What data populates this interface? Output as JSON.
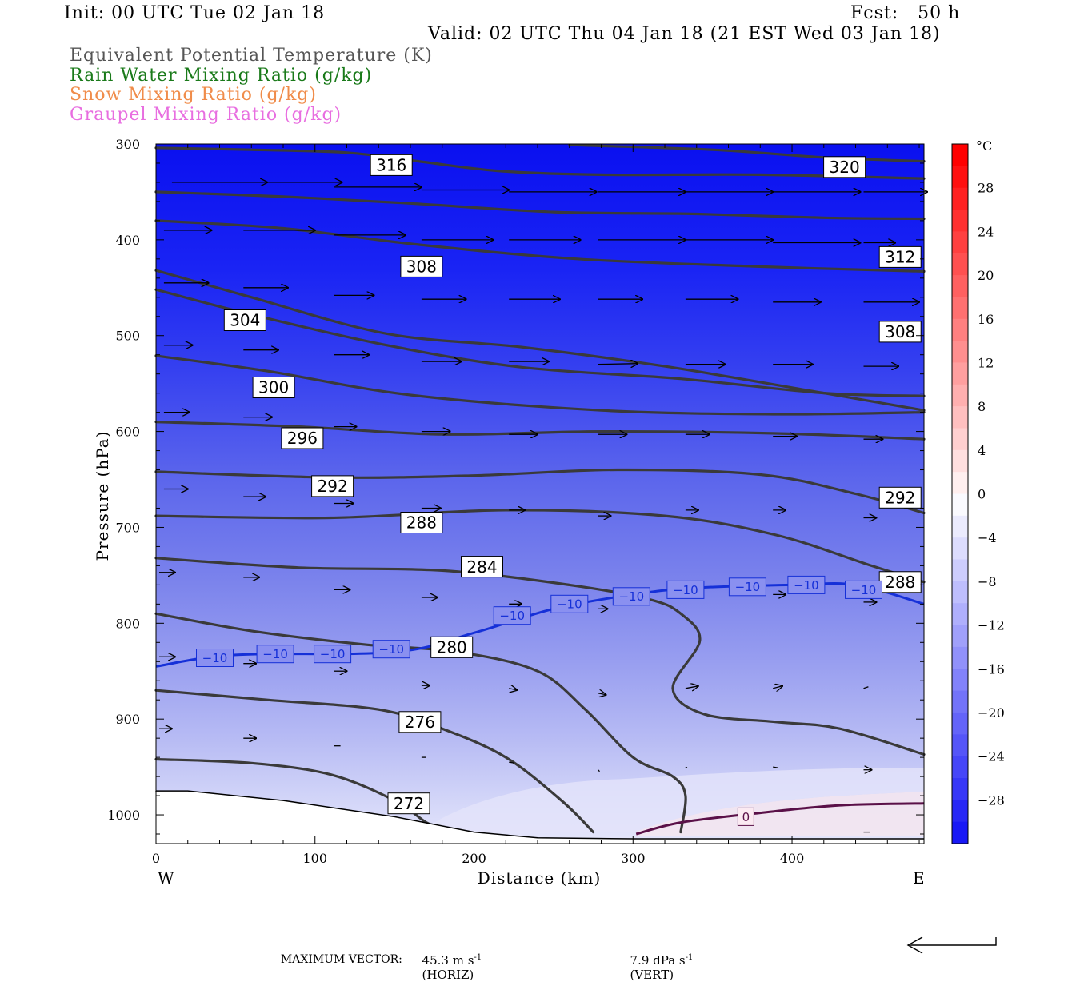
{
  "header": {
    "init": "Init: 00 UTC Tue 02 Jan 18",
    "fcst": "Fcst:   50 h",
    "valid": "Valid: 02 UTC Thu 04 Jan 18 (21 EST Wed 03 Jan 18)"
  },
  "fields": [
    {
      "label": "Equivalent Potential Temperature (K)",
      "color": "#555555"
    },
    {
      "label": "Rain Water Mixing Ratio (g/kg)",
      "color": "#1a7a1a"
    },
    {
      "label": "Snow Mixing Ratio (g/kg)",
      "color": "#f08c4a"
    },
    {
      "label": "Graupel Mixing Ratio (g/kg)",
      "color": "#e86ee0"
    }
  ],
  "footer": {
    "max_vector": "MAXIMUM VECTOR:",
    "horiz_val": "45.3 m s",
    "horiz_unit": "(HORIZ)",
    "vert_val": "7.9 dPa s",
    "vert_unit": "(VERT)",
    "exp": "-1"
  },
  "chart_data": {
    "type": "cross-section",
    "xlabel": "Distance (km)",
    "ylabel": "Pressure (hPa)",
    "x_ticks": [
      0,
      100,
      200,
      300,
      400
    ],
    "y_ticks": [
      300,
      400,
      500,
      600,
      700,
      800,
      900,
      1000
    ],
    "xlim": [
      0,
      483
    ],
    "ylim": [
      300,
      1030
    ],
    "direction_left": "W",
    "direction_right": "E",
    "colorbar": {
      "unit": "°C",
      "ticks": [
        28,
        24,
        20,
        16,
        12,
        8,
        4,
        0,
        -4,
        -8,
        -12,
        -16,
        -20,
        -24,
        -28
      ]
    },
    "theta_e_contours": [
      {
        "value": "316",
        "points": [
          [
            0,
            304
          ],
          [
            60,
            306
          ],
          [
            120,
            309
          ],
          [
            165,
            318
          ],
          [
            215,
            328
          ],
          [
            280,
            332
          ],
          [
            380,
            332
          ],
          [
            483,
            336
          ]
        ],
        "label_at": [
          148,
          322
        ]
      },
      {
        "value": "320",
        "points": [
          [
            260,
            301
          ],
          [
            350,
            306
          ],
          [
            420,
            314
          ],
          [
            483,
            318
          ]
        ],
        "label_at": [
          433,
          324
        ]
      },
      {
        "value": "312",
        "points": [
          [
            0,
            350
          ],
          [
            80,
            355
          ],
          [
            160,
            362
          ],
          [
            250,
            371
          ],
          [
            340,
            373
          ],
          [
            420,
            377
          ],
          [
            483,
            378
          ]
        ],
        "label_at": [
          468,
          418
        ]
      },
      {
        "value": "308",
        "points": [
          [
            0,
            380
          ],
          [
            80,
            388
          ],
          [
            165,
            405
          ],
          [
            265,
            420
          ],
          [
            380,
            428
          ],
          [
            483,
            433
          ]
        ],
        "label_at": [
          167,
          428
        ]
      },
      {
        "value": "308",
        "points": [
          [
            0,
            432
          ],
          [
            60,
            460
          ],
          [
            145,
            498
          ],
          [
            230,
            512
          ],
          [
            320,
            532
          ],
          [
            420,
            560
          ],
          [
            483,
            578
          ]
        ],
        "label_at": [
          468,
          496
        ]
      },
      {
        "value": "304",
        "points": [
          [
            0,
            452
          ],
          [
            60,
            478
          ],
          [
            145,
            510
          ],
          [
            230,
            533
          ],
          [
            330,
            545
          ],
          [
            420,
            560
          ],
          [
            483,
            563
          ]
        ],
        "label_at": [
          56,
          484
        ]
      },
      {
        "value": "300",
        "points": [
          [
            0,
            521
          ],
          [
            70,
            537
          ],
          [
            160,
            562
          ],
          [
            280,
            578
          ],
          [
            390,
            582
          ],
          [
            483,
            580
          ]
        ],
        "label_at": [
          74,
          554
        ]
      },
      {
        "value": "296",
        "points": [
          [
            0,
            590
          ],
          [
            90,
            595
          ],
          [
            180,
            603
          ],
          [
            280,
            600
          ],
          [
            390,
            602
          ],
          [
            483,
            608
          ]
        ],
        "label_at": [
          92,
          607
        ]
      },
      {
        "value": "292",
        "points": [
          [
            0,
            642
          ],
          [
            110,
            648
          ],
          [
            200,
            646
          ],
          [
            290,
            640
          ],
          [
            380,
            645
          ],
          [
            440,
            665
          ],
          [
            483,
            685
          ]
        ],
        "label_at": [
          111,
          657
        ]
      },
      {
        "value": "292",
        "points": [
          [
            440,
            665
          ],
          [
            483,
            685
          ]
        ],
        "label_at": [
          468,
          669
        ]
      },
      {
        "value": "288",
        "points": [
          [
            0,
            688
          ],
          [
            110,
            690
          ],
          [
            220,
            682
          ],
          [
            320,
            688
          ],
          [
            390,
            708
          ],
          [
            450,
            740
          ],
          [
            483,
            757
          ]
        ],
        "label_at": [
          167,
          695
        ]
      },
      {
        "value": "288",
        "points": [
          [
            450,
            740
          ],
          [
            483,
            757
          ]
        ],
        "label_at": [
          468,
          757
        ]
      },
      {
        "value": "284",
        "points": [
          [
            0,
            732
          ],
          [
            90,
            742
          ],
          [
            180,
            745
          ],
          [
            260,
            760
          ],
          [
            310,
            775
          ],
          [
            330,
            790
          ],
          [
            342,
            818
          ],
          [
            325,
            868
          ],
          [
            345,
            895
          ],
          [
            390,
            903
          ],
          [
            430,
            910
          ],
          [
            483,
            937
          ]
        ],
        "label_at": [
          205,
          741
        ]
      },
      {
        "value": "280",
        "points": [
          [
            0,
            790
          ],
          [
            60,
            808
          ],
          [
            130,
            822
          ],
          [
            190,
            830
          ],
          [
            240,
            850
          ],
          [
            270,
            890
          ],
          [
            300,
            940
          ],
          [
            325,
            960
          ],
          [
            333,
            980
          ],
          [
            330,
            1018
          ]
        ],
        "label_at": [
          186,
          825
        ]
      },
      {
        "value": "276",
        "points": [
          [
            0,
            870
          ],
          [
            70,
            880
          ],
          [
            140,
            890
          ],
          [
            180,
            910
          ],
          [
            220,
            940
          ],
          [
            255,
            985
          ],
          [
            275,
            1018
          ]
        ],
        "label_at": [
          166,
          903
        ]
      },
      {
        "value": "272",
        "points": [
          [
            0,
            942
          ],
          [
            60,
            946
          ],
          [
            110,
            958
          ],
          [
            150,
            985
          ],
          [
            170,
            1008
          ],
          [
            180,
            1013
          ]
        ],
        "label_at": [
          159,
          988
        ]
      }
    ],
    "isotherm_minus10": {
      "value": "−10",
      "points": [
        [
          0,
          845
        ],
        [
          50,
          833
        ],
        [
          150,
          830
        ],
        [
          200,
          810
        ],
        [
          250,
          785
        ],
        [
          300,
          770
        ],
        [
          340,
          763
        ],
        [
          400,
          760
        ],
        [
          440,
          760
        ],
        [
          483,
          780
        ]
      ],
      "labels_at": [
        [
          37,
          836
        ],
        [
          75,
          832
        ],
        [
          111,
          832
        ],
        [
          148,
          827
        ],
        [
          224,
          792
        ],
        [
          260,
          780
        ],
        [
          299,
          772
        ],
        [
          333,
          765
        ],
        [
          372,
          762
        ],
        [
          409,
          760
        ],
        [
          445,
          765
        ]
      ]
    },
    "isotherm_zero": {
      "value": "0",
      "points": [
        [
          302,
          1020
        ],
        [
          330,
          1008
        ],
        [
          380,
          998
        ],
        [
          430,
          990
        ],
        [
          483,
          988
        ]
      ],
      "label_at": [
        371,
        1002
      ]
    },
    "surface_pressure": [
      [
        0,
        975
      ],
      [
        20,
        975
      ],
      [
        80,
        985
      ],
      [
        150,
        1002
      ],
      [
        200,
        1018
      ],
      [
        240,
        1024
      ],
      [
        300,
        1025
      ],
      [
        380,
        1025
      ],
      [
        483,
        1025
      ]
    ],
    "wind_vectors": [
      {
        "x": 10,
        "p": 340,
        "dx": 60,
        "dy": 0
      },
      {
        "x": 62,
        "p": 340,
        "dx": 55,
        "dy": 0
      },
      {
        "x": 112,
        "p": 345,
        "dx": 55,
        "dy": 0
      },
      {
        "x": 167,
        "p": 348,
        "dx": 55,
        "dy": 0
      },
      {
        "x": 222,
        "p": 350,
        "dx": 55,
        "dy": 0
      },
      {
        "x": 278,
        "p": 350,
        "dx": 55,
        "dy": 0
      },
      {
        "x": 333,
        "p": 350,
        "dx": 55,
        "dy": 0
      },
      {
        "x": 388,
        "p": 350,
        "dx": 55,
        "dy": 0
      },
      {
        "x": 445,
        "p": 350,
        "dx": 40,
        "dy": 0
      },
      {
        "x": 5,
        "p": 390,
        "dx": 30,
        "dy": 0
      },
      {
        "x": 55,
        "p": 390,
        "dx": 45,
        "dy": 0
      },
      {
        "x": 112,
        "p": 395,
        "dx": 45,
        "dy": 0
      },
      {
        "x": 167,
        "p": 400,
        "dx": 45,
        "dy": 0
      },
      {
        "x": 222,
        "p": 400,
        "dx": 45,
        "dy": 0
      },
      {
        "x": 278,
        "p": 400,
        "dx": 55,
        "dy": 0
      },
      {
        "x": 333,
        "p": 400,
        "dx": 55,
        "dy": 0
      },
      {
        "x": 388,
        "p": 403,
        "dx": 55,
        "dy": 0
      },
      {
        "x": 445,
        "p": 403,
        "dx": 20,
        "dy": 0
      },
      {
        "x": 5,
        "p": 445,
        "dx": 28,
        "dy": 0
      },
      {
        "x": 55,
        "p": 450,
        "dx": 28,
        "dy": 0
      },
      {
        "x": 112,
        "p": 458,
        "dx": 25,
        "dy": 0
      },
      {
        "x": 167,
        "p": 462,
        "dx": 28,
        "dy": 0
      },
      {
        "x": 222,
        "p": 462,
        "dx": 32,
        "dy": 0
      },
      {
        "x": 278,
        "p": 462,
        "dx": 28,
        "dy": 0
      },
      {
        "x": 333,
        "p": 462,
        "dx": 33,
        "dy": 0
      },
      {
        "x": 388,
        "p": 465,
        "dx": 30,
        "dy": 0
      },
      {
        "x": 445,
        "p": 465,
        "dx": 35,
        "dy": 0
      },
      {
        "x": 5,
        "p": 510,
        "dx": 18,
        "dy": 0
      },
      {
        "x": 55,
        "p": 515,
        "dx": 22,
        "dy": 0
      },
      {
        "x": 112,
        "p": 520,
        "dx": 22,
        "dy": 0
      },
      {
        "x": 167,
        "p": 527,
        "dx": 25,
        "dy": 0
      },
      {
        "x": 222,
        "p": 527,
        "dx": 25,
        "dy": 0
      },
      {
        "x": 278,
        "p": 530,
        "dx": 25,
        "dy": -1
      },
      {
        "x": 333,
        "p": 530,
        "dx": 25,
        "dy": 0
      },
      {
        "x": 388,
        "p": 530,
        "dx": 25,
        "dy": 0
      },
      {
        "x": 445,
        "p": 532,
        "dx": 22,
        "dy": 0
      },
      {
        "x": 5,
        "p": 580,
        "dx": 16,
        "dy": 0
      },
      {
        "x": 55,
        "p": 585,
        "dx": 18,
        "dy": 0
      },
      {
        "x": 112,
        "p": 595,
        "dx": 14,
        "dy": 0
      },
      {
        "x": 167,
        "p": 600,
        "dx": 18,
        "dy": 0
      },
      {
        "x": 222,
        "p": 603,
        "dx": 18,
        "dy": 0
      },
      {
        "x": 278,
        "p": 603,
        "dx": 18,
        "dy": 0
      },
      {
        "x": 333,
        "p": 603,
        "dx": 15,
        "dy": 0
      },
      {
        "x": 388,
        "p": 605,
        "dx": 15,
        "dy": 0
      },
      {
        "x": 445,
        "p": 608,
        "dx": 12,
        "dy": 0
      },
      {
        "x": 5,
        "p": 660,
        "dx": 15,
        "dy": 0
      },
      {
        "x": 55,
        "p": 668,
        "dx": 14,
        "dy": 0
      },
      {
        "x": 112,
        "p": 675,
        "dx": 12,
        "dy": 0
      },
      {
        "x": 167,
        "p": 680,
        "dx": 12,
        "dy": 0
      },
      {
        "x": 222,
        "p": 682,
        "dx": 10,
        "dy": 0
      },
      {
        "x": 278,
        "p": 688,
        "dx": 8,
        "dy": 0
      },
      {
        "x": 333,
        "p": 682,
        "dx": 8,
        "dy": 0
      },
      {
        "x": 388,
        "p": 682,
        "dx": 8,
        "dy": 0
      },
      {
        "x": 445,
        "p": 690,
        "dx": 8,
        "dy": 0
      },
      {
        "x": 2,
        "p": 747,
        "dx": 10,
        "dy": 0
      },
      {
        "x": 55,
        "p": 752,
        "dx": 10,
        "dy": 0
      },
      {
        "x": 112,
        "p": 765,
        "dx": 10,
        "dy": 0
      },
      {
        "x": 167,
        "p": 773,
        "dx": 10,
        "dy": 0
      },
      {
        "x": 222,
        "p": 780,
        "dx": 8,
        "dy": 0
      },
      {
        "x": 278,
        "p": 785,
        "dx": 6,
        "dy": 0
      },
      {
        "x": 333,
        "p": 770,
        "dx": 6,
        "dy": 0
      },
      {
        "x": 388,
        "p": 770,
        "dx": 8,
        "dy": 0
      },
      {
        "x": 445,
        "p": 778,
        "dx": 8,
        "dy": 0
      },
      {
        "x": 2,
        "p": 835,
        "dx": 10,
        "dy": 0
      },
      {
        "x": 55,
        "p": 842,
        "dx": 8,
        "dy": 0
      },
      {
        "x": 112,
        "p": 850,
        "dx": 8,
        "dy": 0
      },
      {
        "x": 167,
        "p": 865,
        "dx": 5,
        "dy": 0
      },
      {
        "x": 222,
        "p": 868,
        "dx": 5,
        "dy": 2
      },
      {
        "x": 278,
        "p": 873,
        "dx": 5,
        "dy": 2
      },
      {
        "x": 333,
        "p": 868,
        "dx": 8,
        "dy": -3
      },
      {
        "x": 388,
        "p": 868,
        "dx": 6,
        "dy": -3
      },
      {
        "x": 445,
        "p": 868,
        "dx": 3,
        "dy": -2
      },
      {
        "x": 2,
        "p": 910,
        "dx": 8,
        "dy": 0
      },
      {
        "x": 55,
        "p": 920,
        "dx": 8,
        "dy": 0
      },
      {
        "x": 112,
        "p": 928,
        "dx": 4,
        "dy": 0
      },
      {
        "x": 167,
        "p": 940,
        "dx": 3,
        "dy": 0
      },
      {
        "x": 222,
        "p": 945,
        "dx": 3,
        "dy": 1
      },
      {
        "x": 278,
        "p": 953,
        "dx": 1,
        "dy": 2
      },
      {
        "x": 333,
        "p": 950,
        "dx": 1,
        "dy": 1
      },
      {
        "x": 388,
        "p": 950,
        "dx": 3,
        "dy": 1
      },
      {
        "x": 445,
        "p": 953,
        "dx": 5,
        "dy": 0
      },
      {
        "x": 55,
        "p": 987,
        "dx": 2,
        "dy": 0
      },
      {
        "x": 112,
        "p": 1000,
        "dx": 2,
        "dy": 0
      },
      {
        "x": 167,
        "p": 1010,
        "dx": 3,
        "dy": 0
      },
      {
        "x": 445,
        "p": 1018,
        "dx": 4,
        "dy": 0
      }
    ]
  }
}
